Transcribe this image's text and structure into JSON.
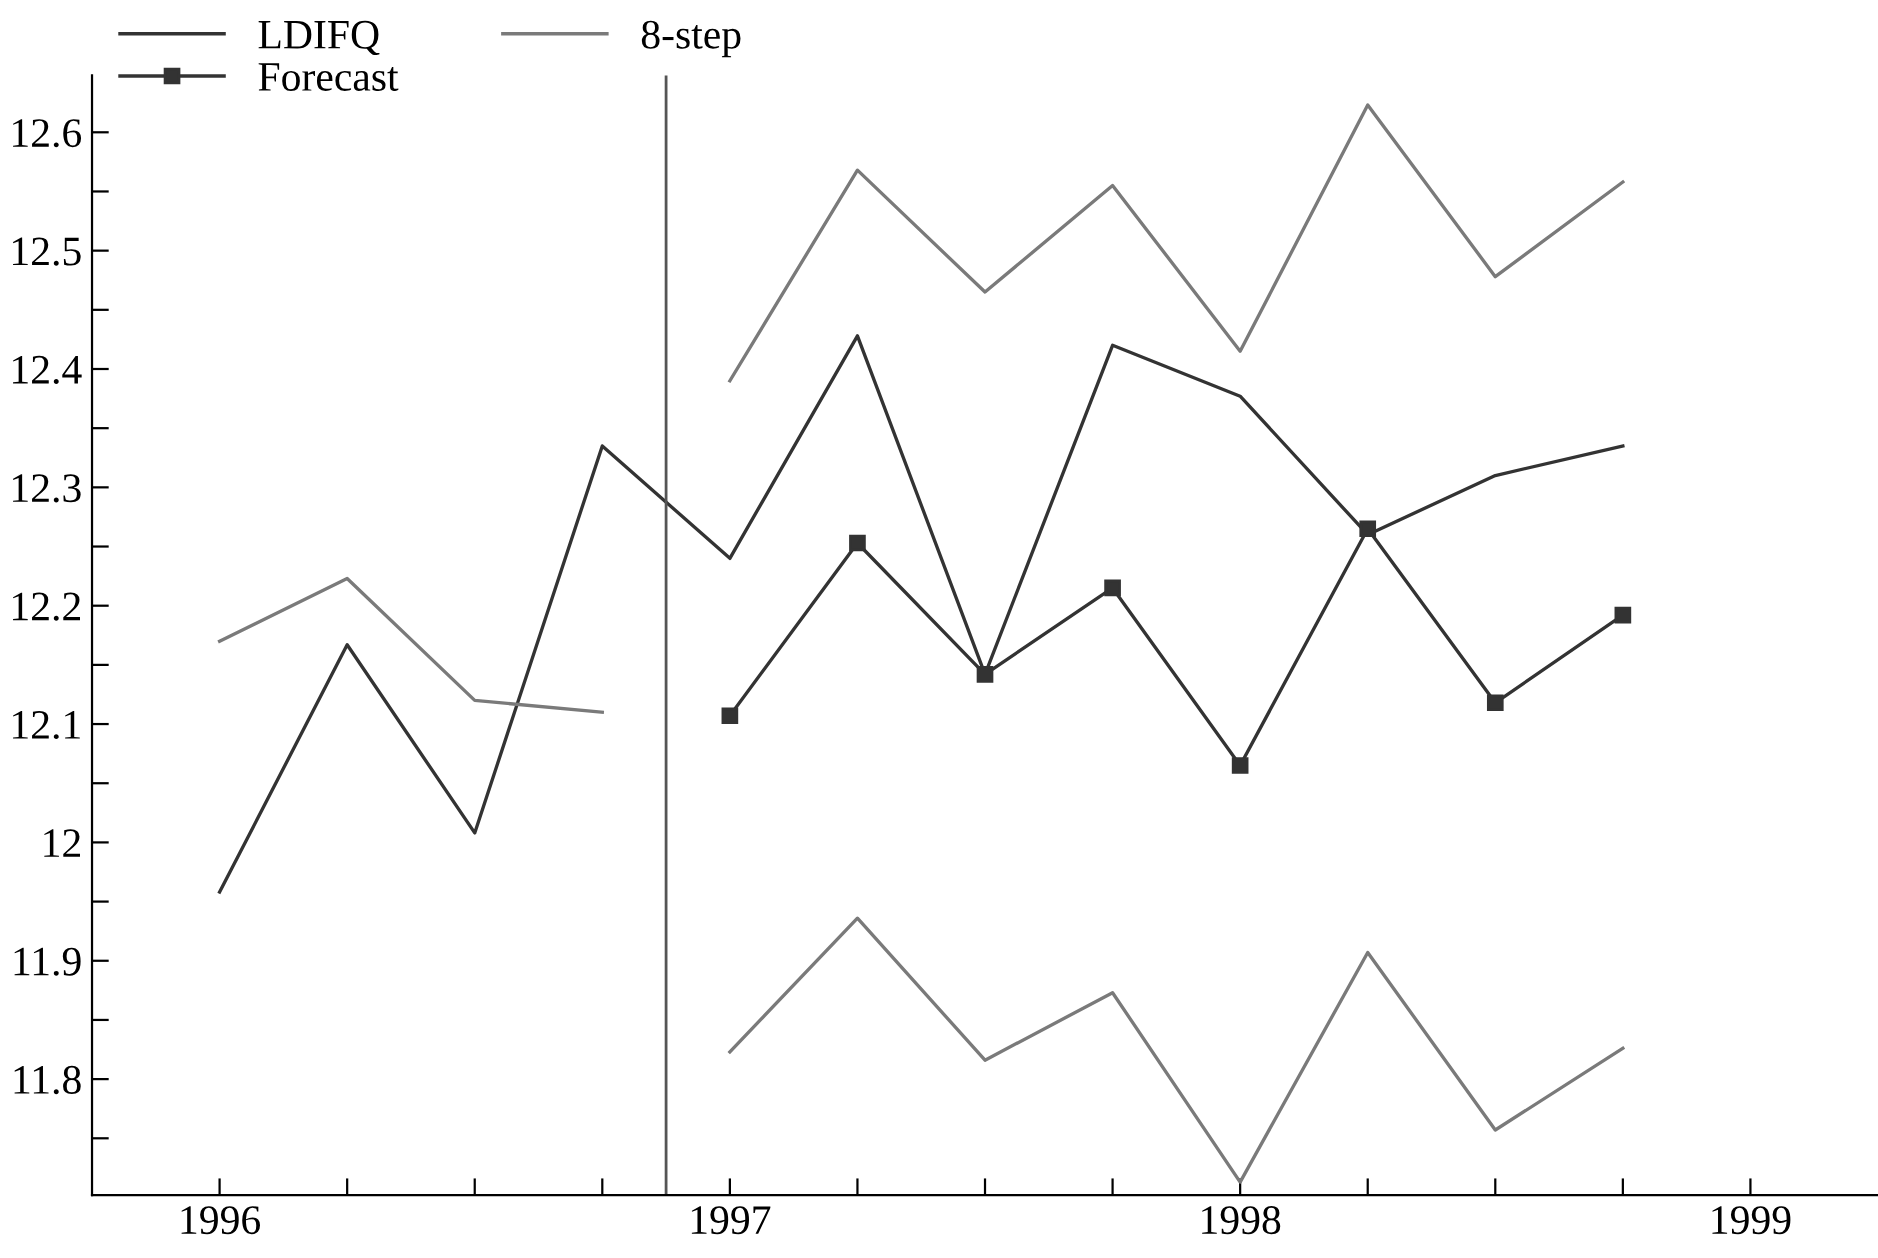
{
  "chart_data": {
    "type": "line",
    "series": [
      {
        "name": "LDIFQ",
        "color": "#333333",
        "x": [
          1996.0,
          1996.25,
          1996.5,
          1996.75,
          1997.0,
          1997.25,
          1997.5,
          1997.75,
          1998.0,
          1998.25,
          1998.5,
          1998.75
        ],
        "values": [
          11.958,
          12.167,
          12.008,
          12.335,
          12.24,
          12.428,
          12.142,
          12.42,
          12.377,
          12.26,
          12.31,
          12.335
        ]
      },
      {
        "name": "8-step",
        "color": "#7a7a7a",
        "x": [
          1997.0,
          1997.25,
          1997.5,
          1997.75,
          1998.0,
          1998.25,
          1998.5,
          1998.75
        ],
        "values": [
          12.39,
          12.568,
          12.465,
          12.555,
          12.415,
          12.623,
          12.478,
          12.558
        ]
      },
      {
        "color": "#7a7a7a",
        "x": [
          1997.0,
          1997.25,
          1997.5,
          1997.75,
          1998.0,
          1998.25,
          1998.5,
          1998.75
        ],
        "values": [
          11.823,
          11.936,
          11.816,
          11.873,
          11.713,
          11.907,
          11.757,
          11.826
        ]
      },
      {
        "color": "#7a7a7a",
        "x": [
          1996.0,
          1996.25,
          1996.5,
          1996.75
        ],
        "values": [
          12.17,
          12.223,
          12.12,
          12.11
        ]
      },
      {
        "name": "Forecast",
        "color": "#333333",
        "marker": "square",
        "x": [
          1997.0,
          1997.25,
          1997.5,
          1997.75,
          1998.0,
          1998.25,
          1998.5,
          1998.75
        ],
        "values": [
          12.107,
          12.253,
          12.142,
          12.215,
          12.065,
          12.265,
          12.118,
          12.192
        ]
      }
    ],
    "xlim": [
      1995.75,
      1999.25
    ],
    "xticks": [
      1996,
      {
        "value": 1996.25,
        "label": null
      },
      {
        "value": 1996.5,
        "label": null
      },
      {
        "value": 1996.75,
        "label": null
      },
      1997,
      {
        "value": 1997.25,
        "label": null
      },
      {
        "value": 1997.5,
        "label": null
      },
      {
        "value": 1997.75,
        "label": null
      },
      1998,
      {
        "value": 1998.25,
        "label": null
      },
      {
        "value": 1998.5,
        "label": null
      },
      {
        "value": 1998.75,
        "label": null
      },
      1999
    ],
    "ylim": [
      11.702,
      12.648
    ],
    "yticks": [
      {
        "value": 11.75,
        "label": null
      },
      11.8,
      {
        "value": 11.85,
        "label": null
      },
      11.9,
      {
        "value": 11.95,
        "label": null
      },
      12,
      {
        "value": 12.05,
        "label": null
      },
      12.1,
      {
        "value": 12.15,
        "label": null
      },
      12.2,
      {
        "value": 12.25,
        "label": null
      },
      12.3,
      {
        "value": 12.35,
        "label": null
      },
      12.4,
      {
        "value": 12.45,
        "label": null
      },
      12.5,
      {
        "value": 12.55,
        "label": null
      },
      12.6
    ],
    "ref_lines": [
      {
        "axis": "x",
        "value": 1996.875,
        "color": "#555555"
      }
    ],
    "legend": "top left",
    "grid": false
  }
}
